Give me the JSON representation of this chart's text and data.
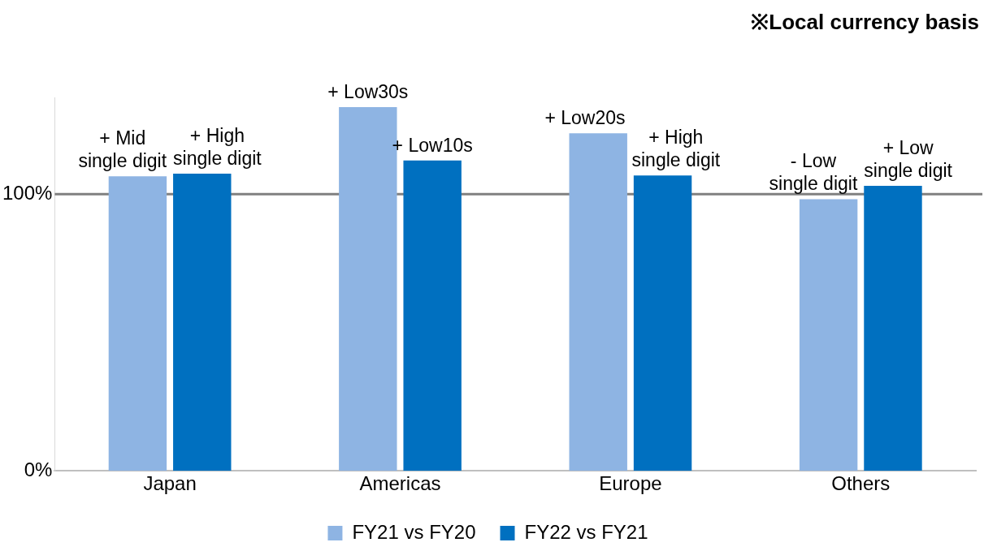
{
  "chart_data": {
    "type": "bar",
    "annotations": [
      "※Local currency basis"
    ],
    "categories": [
      "Japan",
      "Americas",
      "Europe",
      "Others"
    ],
    "series": [
      {
        "name": "FY21 vs FY20",
        "color": "#8eb4e3",
        "values": [
          106.5,
          131.5,
          122,
          98.2
        ],
        "value_labels": [
          "+ Mid\nsingle digit",
          "+ Low30s",
          "+ Low20s",
          "- Low\nsingle digit"
        ]
      },
      {
        "name": "FY22 vs FY21",
        "color": "#0070c0",
        "values": [
          107.4,
          112.2,
          106.8,
          103
        ],
        "value_labels": [
          "+ High\nsingle digit",
          "+ Low10s",
          "+ High\nsingle digit",
          "+ Low\nsingle digit"
        ]
      }
    ],
    "ylim": [
      0,
      135
    ],
    "yticks": [
      {
        "value": 0,
        "label": "0%"
      },
      {
        "value": 100,
        "label": "100%"
      }
    ],
    "ref_lines": [
      {
        "axis": "y",
        "value": 100,
        "color": "#808080"
      }
    ],
    "grid": false,
    "legend": "bottom"
  }
}
